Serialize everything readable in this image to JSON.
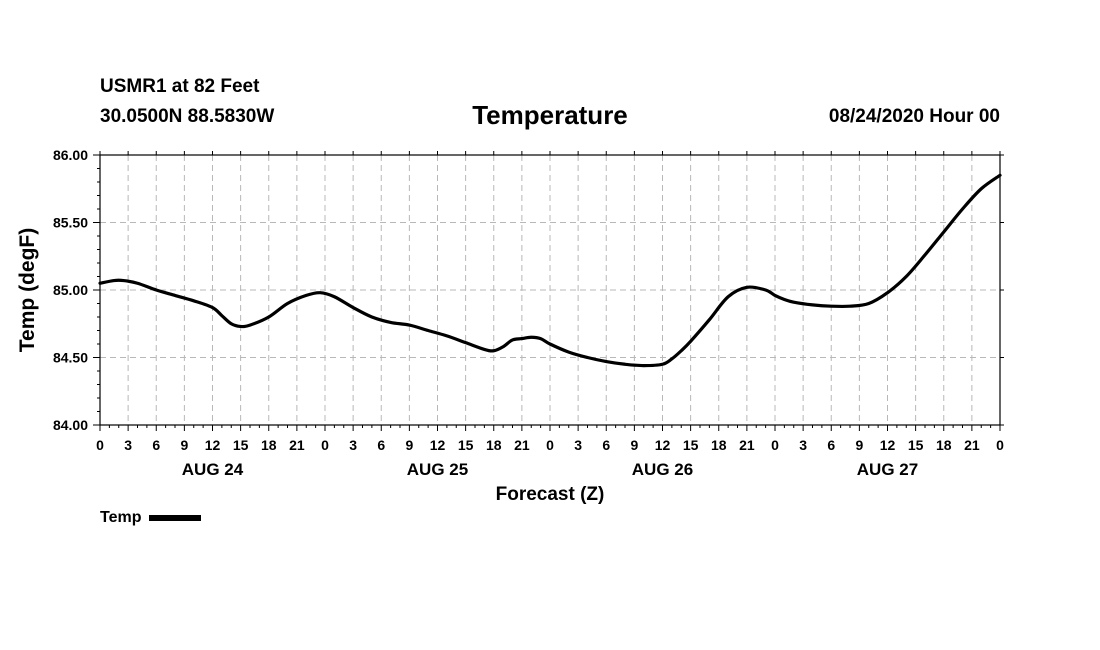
{
  "header": {
    "station": "USMR1 at 82 Feet",
    "coords": "30.0500N 88.5830W",
    "issued": "08/24/2020 Hour 00"
  },
  "chart_data": {
    "type": "line",
    "title": "Temperature",
    "xlabel": "Forecast (Z)",
    "ylabel": "Temp (degF)",
    "ylim": [
      84.0,
      86.0
    ],
    "yticks": [
      84.0,
      84.5,
      85.0,
      85.5,
      86.0
    ],
    "ytick_labels": [
      "84.00",
      "84.50",
      "85.00",
      "85.50",
      "86.00"
    ],
    "xlim_hours": [
      0,
      96
    ],
    "xtick_step_hours": 3,
    "xtick_labels": [
      "0",
      "3",
      "6",
      "9",
      "12",
      "15",
      "18",
      "21",
      "0",
      "3",
      "6",
      "9",
      "12",
      "15",
      "18",
      "21",
      "0",
      "3",
      "6",
      "9",
      "12",
      "15",
      "18",
      "21",
      "0",
      "3",
      "6",
      "9",
      "12",
      "15",
      "18",
      "21",
      "0"
    ],
    "day_labels": [
      {
        "label": "AUG 24",
        "hour": 12
      },
      {
        "label": "AUG 25",
        "hour": 36
      },
      {
        "label": "AUG 26",
        "hour": 60
      },
      {
        "label": "AUG 27",
        "hour": 84
      }
    ],
    "grid": true,
    "legend": "bottom-left",
    "series": [
      {
        "name": "Temp",
        "color": "#000000",
        "x": [
          0,
          1.5,
          2.5,
          4,
          6,
          8,
          10,
          12,
          13,
          14,
          15,
          16,
          18,
          20,
          22,
          23.5,
          25,
          27,
          29,
          31,
          33,
          35,
          37,
          39,
          41,
          42,
          43,
          44,
          45,
          46,
          47,
          48,
          50,
          52,
          54,
          56,
          58,
          60,
          61,
          62,
          63,
          65,
          67,
          69,
          71,
          72,
          73,
          74,
          76,
          78,
          80,
          82,
          84,
          86,
          88,
          90,
          92,
          94,
          96
        ],
        "values": [
          85.05,
          85.07,
          85.07,
          85.05,
          85.0,
          84.96,
          84.92,
          84.87,
          84.81,
          84.75,
          84.73,
          84.74,
          84.8,
          84.9,
          84.96,
          84.98,
          84.95,
          84.87,
          84.8,
          84.76,
          84.74,
          84.7,
          84.66,
          84.61,
          84.56,
          84.55,
          84.58,
          84.63,
          84.64,
          84.65,
          84.64,
          84.6,
          84.54,
          84.5,
          84.47,
          84.45,
          84.44,
          84.45,
          84.49,
          84.55,
          84.62,
          84.78,
          84.95,
          85.02,
          85.0,
          84.96,
          84.93,
          84.91,
          84.89,
          84.88,
          84.88,
          84.9,
          84.98,
          85.1,
          85.26,
          85.43,
          85.6,
          85.75,
          85.85
        ]
      }
    ]
  }
}
